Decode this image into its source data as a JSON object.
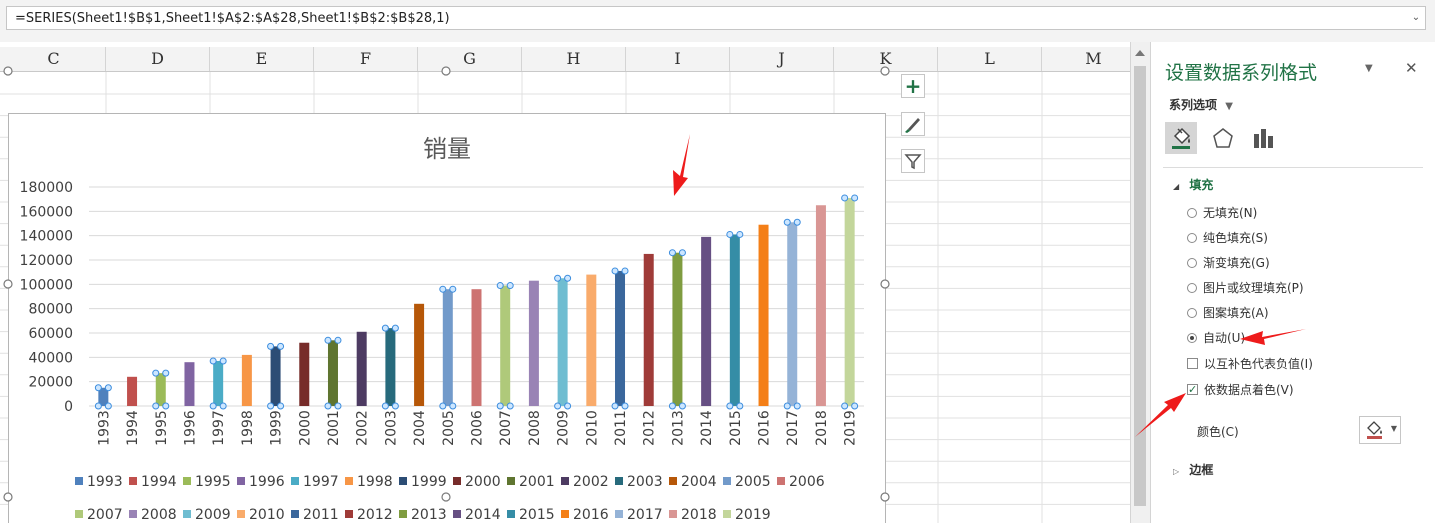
{
  "formula": "=SERIES(Sheet1!$B$1,Sheet1!$A$2:$A$28,Sheet1!$B$2:$B$28,1)",
  "columns": [
    "C",
    "D",
    "E",
    "F",
    "G",
    "H",
    "I",
    "J",
    "K",
    "L",
    "M"
  ],
  "chart_data": {
    "type": "bar",
    "title": "销量",
    "categories": [
      "1993",
      "1994",
      "1995",
      "1996",
      "1997",
      "1998",
      "1999",
      "2000",
      "2001",
      "2002",
      "2003",
      "2004",
      "2005",
      "2006",
      "2007",
      "2008",
      "2009",
      "2010",
      "2011",
      "2012",
      "2013",
      "2014",
      "2015",
      "2016",
      "2017",
      "2018",
      "2019"
    ],
    "values": [
      15000,
      24000,
      27000,
      36000,
      37000,
      42000,
      49000,
      52000,
      54000,
      61000,
      64000,
      84000,
      96000,
      96000,
      99000,
      103000,
      105000,
      108000,
      111000,
      125000,
      126000,
      139000,
      141000,
      149000,
      151000,
      165000,
      171000
    ],
    "colors": [
      "#4f81bd",
      "#c0504d",
      "#9bbb59",
      "#8064a2",
      "#4bacc6",
      "#f79646",
      "#2c4d75",
      "#772c2a",
      "#5f7530",
      "#4d3b62",
      "#276a7c",
      "#b65708",
      "#729aca",
      "#cd7371",
      "#afc97a",
      "#9983b5",
      "#6fbdd1",
      "#f9ab6b",
      "#3a679c",
      "#9f3b38",
      "#7f9c40",
      "#664f83",
      "#358da6",
      "#f47f17",
      "#95b3d7",
      "#d99694",
      "#c3d69b"
    ],
    "ylim": [
      0,
      180000
    ],
    "yticks": [
      0,
      20000,
      40000,
      60000,
      80000,
      100000,
      120000,
      140000,
      160000,
      180000
    ],
    "grid": true,
    "legend": "bottom"
  },
  "panel": {
    "title": "设置数据系列格式",
    "close": "✕",
    "dropdown": "▼",
    "subtitle": "系列选项",
    "section_fill": "填充",
    "section_border": "边框",
    "options": {
      "no_fill": "无填充(N)",
      "solid_fill": "纯色填充(S)",
      "gradient_fill": "渐变填充(G)",
      "picture_fill": "图片或纹理填充(P)",
      "pattern_fill": "图案填充(A)",
      "auto": "自动(U)",
      "invert": "以互补色代表负值(I)",
      "vary": "依数据点着色(V)"
    },
    "color_label": "颜色(C)"
  },
  "chart_tools": {
    "add": "+"
  }
}
